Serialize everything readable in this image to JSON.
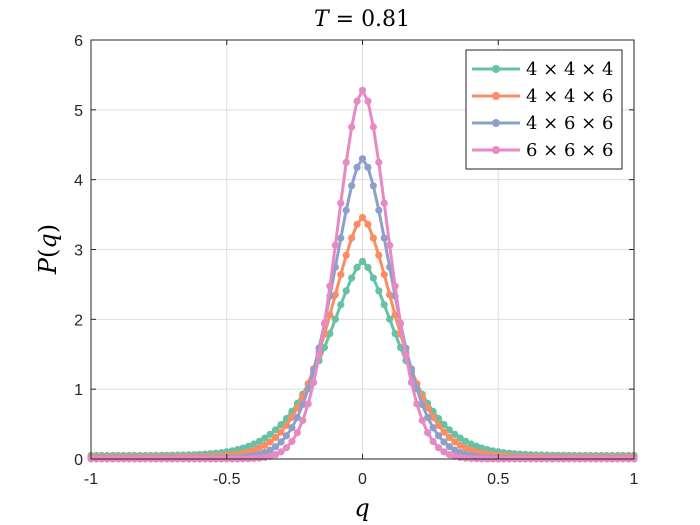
{
  "chart_data": {
    "type": "line",
    "title": "T = 0.81",
    "title_parts": {
      "var": "T",
      "op": " = ",
      "val": "0.81"
    },
    "xlabel": "q",
    "ylabel": "P(q)",
    "ylabel_parts": {
      "fn": "P",
      "open": "(",
      "arg": "q",
      "close": ")"
    },
    "xlim": [
      -1,
      1
    ],
    "ylim": [
      0,
      6
    ],
    "xticks": [
      -1,
      -0.5,
      0,
      0.5,
      1
    ],
    "xtick_labels": [
      "-1",
      "-0.5",
      "0",
      "0.5",
      "1"
    ],
    "yticks": [
      0,
      1,
      2,
      3,
      4,
      5,
      6
    ],
    "ytick_labels": [
      "0",
      "1",
      "2",
      "3",
      "4",
      "5",
      "6"
    ],
    "grid": true,
    "legend_position": "top-right",
    "n_points": 101,
    "series": [
      {
        "name": "4 × 4 × 4",
        "color": "#66c2a5",
        "peak": 2.83,
        "width": 0.2,
        "shape": 1.5,
        "baseline": 0.05
      },
      {
        "name": "4 × 4 × 6",
        "color": "#fc8d62",
        "peak": 3.46,
        "width": 0.18,
        "shape": 1.6,
        "baseline": 0.03
      },
      {
        "name": "4 × 6 × 6",
        "color": "#8da0cb",
        "peak": 4.3,
        "width": 0.16,
        "shape": 1.7,
        "baseline": 0.01
      },
      {
        "name": "6 × 6 × 6",
        "color": "#e78ac3",
        "peak": 5.28,
        "width": 0.14,
        "shape": 1.8,
        "baseline": 0.0
      }
    ]
  }
}
